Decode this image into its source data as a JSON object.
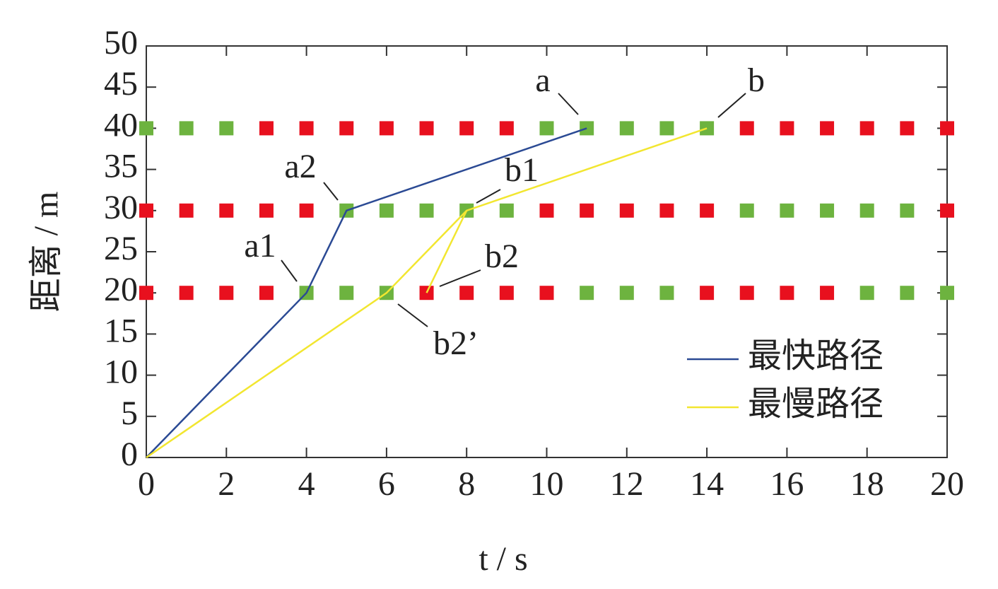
{
  "chart_data": {
    "type": "line",
    "xlabel": "t / s",
    "ylabel": "距离 / m",
    "xlim": [
      0,
      20
    ],
    "xticks": [
      0,
      2,
      4,
      6,
      8,
      10,
      12,
      14,
      16,
      18,
      20
    ],
    "ylim": [
      0,
      50
    ],
    "yticks": [
      0,
      5,
      10,
      15,
      20,
      25,
      30,
      35,
      40,
      45,
      50
    ],
    "legend": "lower right",
    "signals": [
      {
        "color": "#e8101e",
        "x": [
          3,
          4,
          5,
          6,
          7,
          8,
          9,
          15,
          16,
          17,
          18,
          19,
          20,
          0,
          1,
          2,
          3,
          4,
          10,
          11,
          12,
          13,
          14,
          20,
          0,
          1,
          2,
          3,
          7,
          8,
          9,
          10,
          14,
          15,
          16,
          17
        ],
        "values": [
          40,
          40,
          40,
          40,
          40,
          40,
          40,
          40,
          40,
          40,
          40,
          40,
          40,
          30,
          30,
          30,
          30,
          30,
          30,
          30,
          30,
          30,
          30,
          30,
          20,
          20,
          20,
          20,
          20,
          20,
          20,
          20,
          20,
          20,
          20,
          20
        ]
      },
      {
        "color": "#6db33f",
        "x": [
          0,
          1,
          2,
          10,
          11,
          12,
          13,
          14,
          5,
          6,
          7,
          8,
          9,
          15,
          16,
          17,
          18,
          19,
          4,
          5,
          6,
          11,
          12,
          13,
          18,
          19,
          20
        ],
        "values": [
          40,
          40,
          40,
          40,
          40,
          40,
          40,
          40,
          30,
          30,
          30,
          30,
          30,
          30,
          30,
          30,
          30,
          30,
          20,
          20,
          20,
          20,
          20,
          20,
          20,
          20,
          20
        ]
      }
    ],
    "series": [
      {
        "name": "最快路径",
        "color": "#2b4a94",
        "x": [
          0,
          4,
          5,
          11
        ],
        "values": [
          0,
          20,
          30,
          40
        ]
      },
      {
        "name": "最慢路径",
        "color": "#f2e630",
        "x": [
          0,
          6,
          8,
          14,
          null,
          7,
          8
        ],
        "values": [
          0,
          20,
          30,
          40,
          null,
          20,
          30
        ]
      }
    ],
    "annotations": [
      "a",
      "b",
      "a1",
      "a2",
      "b1",
      "b2",
      "b2’"
    ]
  }
}
